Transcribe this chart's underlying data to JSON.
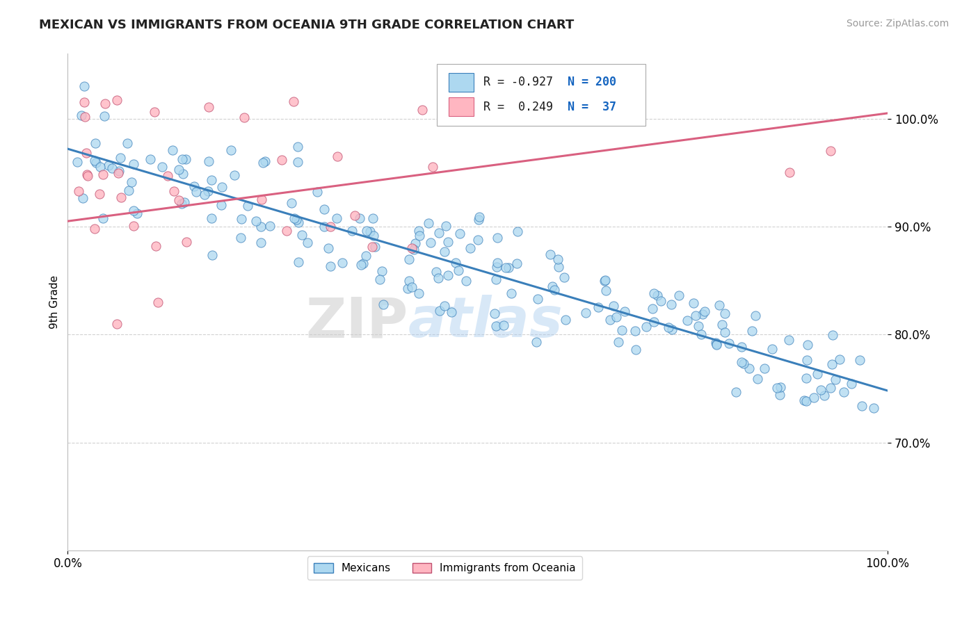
{
  "title": "MEXICAN VS IMMIGRANTS FROM OCEANIA 9TH GRADE CORRELATION CHART",
  "source_text": "Source: ZipAtlas.com",
  "ylabel": "9th Grade",
  "xlim": [
    0.0,
    1.0
  ],
  "ylim": [
    0.6,
    1.06
  ],
  "mexican_color": "#ADD8F0",
  "oceania_color": "#FFB6C1",
  "mexican_R": -0.927,
  "mexican_N": 200,
  "oceania_R": 0.249,
  "oceania_N": 37,
  "trendline_blue": "#3A7FBA",
  "trendline_pink": "#D96080",
  "watermark_zip": "ZIP",
  "watermark_atlas": "atlas",
  "xtick_labels": [
    "0.0%",
    "100.0%"
  ],
  "ytick_positions": [
    0.7,
    0.8,
    0.9,
    1.0
  ],
  "ytick_labels": [
    "70.0%",
    "80.0%",
    "90.0%",
    "100.0%"
  ],
  "background_color": "#FFFFFF",
  "grid_color": "#CCCCCC",
  "legend_r1": "R = -0.927",
  "legend_n1": "N = 200",
  "legend_r2": "R =  0.249",
  "legend_n2": "N =  37"
}
